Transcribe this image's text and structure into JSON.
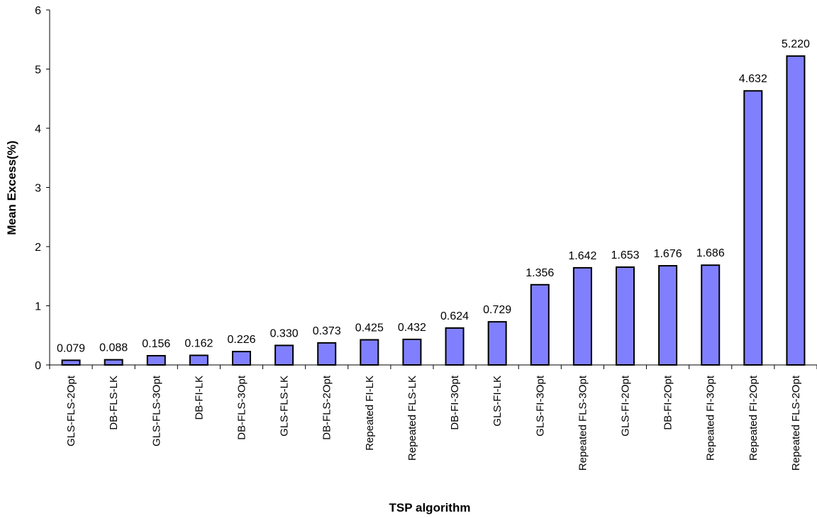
{
  "chart_data": {
    "type": "bar",
    "xlabel": "TSP algorithm",
    "ylabel": "Mean Excess(%)",
    "ylim": [
      0,
      6
    ],
    "yticks": [
      0,
      1,
      2,
      3,
      4,
      5,
      6
    ],
    "grid": false,
    "legend": "none",
    "bar_color": "#8080FF",
    "bar_edge_color": "#000000",
    "categories": [
      "GLS-FLS-2Opt",
      "DB-FLS-LK",
      "GLS-FLS-3Opt",
      "DB-FI-LK",
      "DB-FLS-3Opt",
      "GLS-FLS-LK",
      "DB-FLS-2Opt",
      "Repeated FI-LK",
      "Repeated FLS-LK",
      "DB-FI-3Opt",
      "GLS-FI-LK",
      "GLS-FI-3Opt",
      "Repeated FLS-3Opt",
      "GLS-FI-2Opt",
      "DB-FI-2Opt",
      "Repeated FI-3Opt",
      "Repeated FI-2Opt",
      "Repeated FLS-2Opt"
    ],
    "values": [
      0.079,
      0.088,
      0.156,
      0.162,
      0.226,
      0.33,
      0.373,
      0.425,
      0.432,
      0.624,
      0.729,
      1.356,
      1.642,
      1.653,
      1.676,
      1.686,
      4.632,
      5.22
    ],
    "data_labels": [
      "0.079",
      "0.088",
      "0.156",
      "0.162",
      "0.226",
      "0.330",
      "0.373",
      "0.425",
      "0.432",
      "0.624",
      "0.729",
      "1.356",
      "1.642",
      "1.653",
      "1.676",
      "1.686",
      "4.632",
      "5.220"
    ]
  }
}
